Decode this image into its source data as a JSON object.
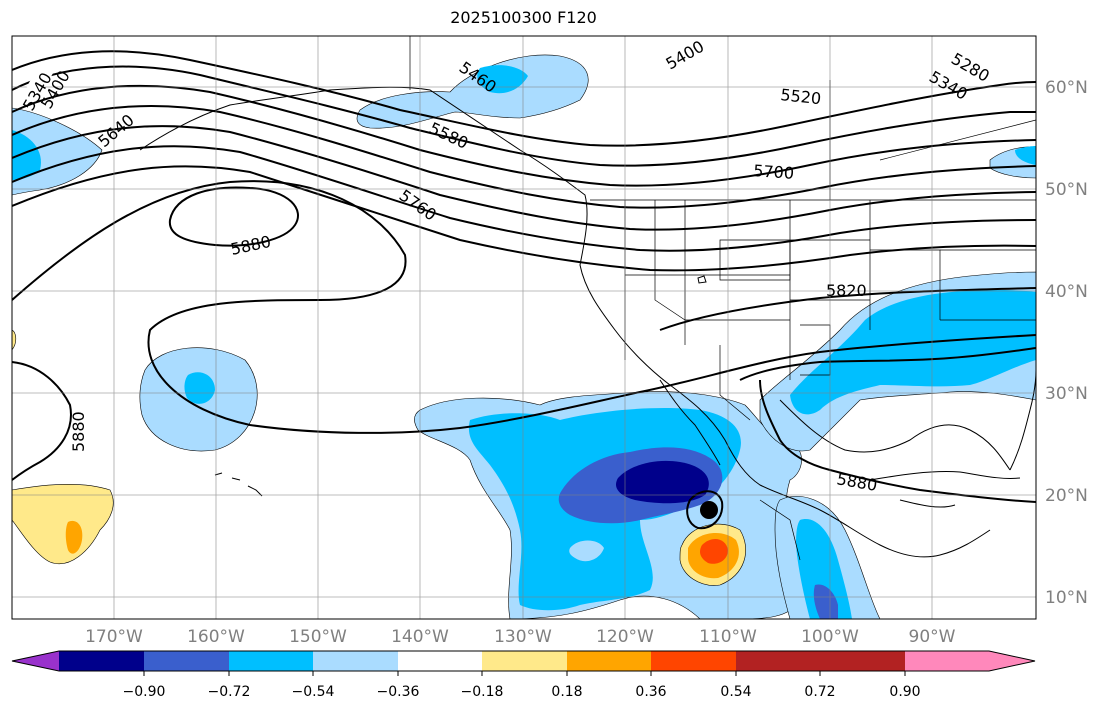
{
  "title": "2025100300 F120",
  "lat_labels": [
    "60°N",
    "50°N",
    "40°N",
    "30°N",
    "20°N",
    "10°N"
  ],
  "lon_labels": [
    "170°W",
    "160°W",
    "150°W",
    "140°W",
    "130°W",
    "120°W",
    "110°W",
    "100°W",
    "90°W"
  ],
  "contour_labels": [
    "5340",
    "5400",
    "5640",
    "5460",
    "5580",
    "5400",
    "5520",
    "5280",
    "5340",
    "5700",
    "5760",
    "5880",
    "5820",
    "5880",
    "5880"
  ],
  "colorbar": {
    "ticks": [
      "−0.90",
      "−0.72",
      "−0.54",
      "−0.36",
      "−0.18",
      "0.18",
      "0.36",
      "0.54",
      "0.72",
      "0.90"
    ],
    "colors": [
      "#9932cc",
      "#00008b",
      "#3a5fcd",
      "#00bfff",
      "#aadcff",
      "#ffffff",
      "#ffe98a",
      "#ffa500",
      "#ff4500",
      "#b22222",
      "#ff88bb"
    ]
  }
}
